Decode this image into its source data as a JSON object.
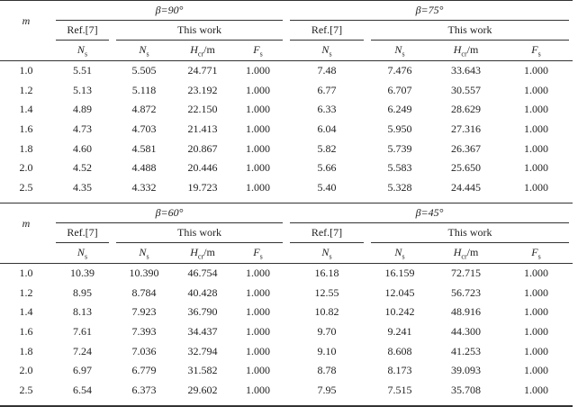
{
  "m_label": "m",
  "ref_label": "Ref.[7]",
  "this_work_label": "This work",
  "col_ns": "N",
  "col_ns_sub": "s",
  "col_hcr": "H",
  "col_hcr_sub": "cr",
  "col_hcr_unit": "/m",
  "col_fs": "F",
  "col_fs_sub": "s",
  "m_values": [
    "1.0",
    "1.2",
    "1.4",
    "1.6",
    "1.8",
    "2.0",
    "2.5"
  ],
  "blocks": [
    {
      "panels": [
        {
          "beta": "β=90°",
          "ref_ns": [
            "5.51",
            "5.13",
            "4.89",
            "4.73",
            "4.60",
            "4.52",
            "4.35"
          ],
          "ns": [
            "5.505",
            "5.118",
            "4.872",
            "4.703",
            "4.581",
            "4.488",
            "4.332"
          ],
          "hcr": [
            "24.771",
            "23.192",
            "22.150",
            "21.413",
            "20.867",
            "20.446",
            "19.723"
          ],
          "fs": [
            "1.000",
            "1.000",
            "1.000",
            "1.000",
            "1.000",
            "1.000",
            "1.000"
          ]
        },
        {
          "beta": "β=75°",
          "ref_ns": [
            "7.48",
            "6.77",
            "6.33",
            "6.04",
            "5.82",
            "5.66",
            "5.40"
          ],
          "ns": [
            "7.476",
            "6.707",
            "6.249",
            "5.950",
            "5.739",
            "5.583",
            "5.328"
          ],
          "hcr": [
            "33.643",
            "30.557",
            "28.629",
            "27.316",
            "26.367",
            "25.650",
            "24.445"
          ],
          "fs": [
            "1.000",
            "1.000",
            "1.000",
            "1.000",
            "1.000",
            "1.000",
            "1.000"
          ]
        }
      ]
    },
    {
      "panels": [
        {
          "beta": "β=60°",
          "ref_ns": [
            "10.39",
            "8.95",
            "8.13",
            "7.61",
            "7.24",
            "6.97",
            "6.54"
          ],
          "ns": [
            "10.390",
            "8.784",
            "7.923",
            "7.393",
            "7.036",
            "6.779",
            "6.373"
          ],
          "hcr": [
            "46.754",
            "40.428",
            "36.790",
            "34.437",
            "32.794",
            "31.582",
            "29.602"
          ],
          "fs": [
            "1.000",
            "1.000",
            "1.000",
            "1.000",
            "1.000",
            "1.000",
            "1.000"
          ]
        },
        {
          "beta": "β=45°",
          "ref_ns": [
            "16.18",
            "12.55",
            "10.82",
            "9.70",
            "9.10",
            "8.78",
            "7.95"
          ],
          "ns": [
            "16.159",
            "12.045",
            "10.242",
            "9.241",
            "8.608",
            "8.173",
            "7.515"
          ],
          "hcr": [
            "72.715",
            "56.723",
            "48.916",
            "44.300",
            "41.253",
            "39.093",
            "35.708"
          ],
          "fs": [
            "1.000",
            "1.000",
            "1.000",
            "1.000",
            "1.000",
            "1.000",
            "1.000"
          ]
        }
      ]
    }
  ]
}
